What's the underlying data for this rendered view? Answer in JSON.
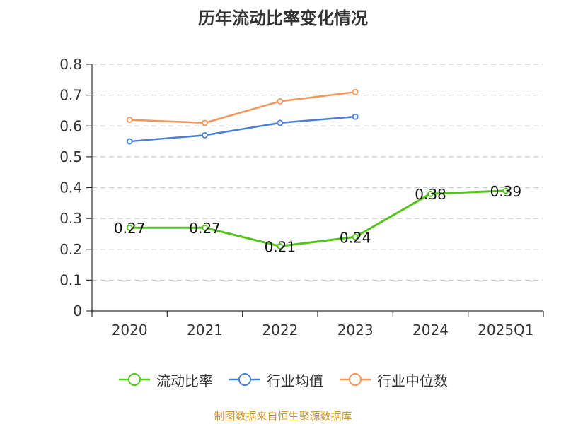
{
  "chart_data": {
    "type": "line",
    "title": "历年流动比率变化情况",
    "categories": [
      "2020",
      "2021",
      "2022",
      "2023",
      "2024",
      "2025Q1"
    ],
    "ylim": [
      0,
      0.8
    ],
    "yticks": [
      "0",
      "0.1",
      "0.2",
      "0.3",
      "0.4",
      "0.5",
      "0.6",
      "0.7",
      "0.8"
    ],
    "grid": true,
    "legend_position": "bottom",
    "series": [
      {
        "name": "流动比率",
        "color": "#52c41a",
        "values": [
          0.27,
          0.27,
          0.21,
          0.24,
          0.38,
          0.39
        ],
        "labels": [
          "0.27",
          "0.27",
          "0.21",
          "0.24",
          "0.38",
          "0.39"
        ]
      },
      {
        "name": "行业均值",
        "color": "#4a7fd4",
        "values": [
          0.55,
          0.57,
          0.61,
          0.63,
          null,
          null
        ]
      },
      {
        "name": "行业中位数",
        "color": "#f5955a",
        "values": [
          0.62,
          0.61,
          0.68,
          0.71,
          null,
          null
        ]
      }
    ]
  },
  "footer": {
    "source": "制图数据来自恒生聚源数据库",
    "source_color": "#c8962a"
  }
}
